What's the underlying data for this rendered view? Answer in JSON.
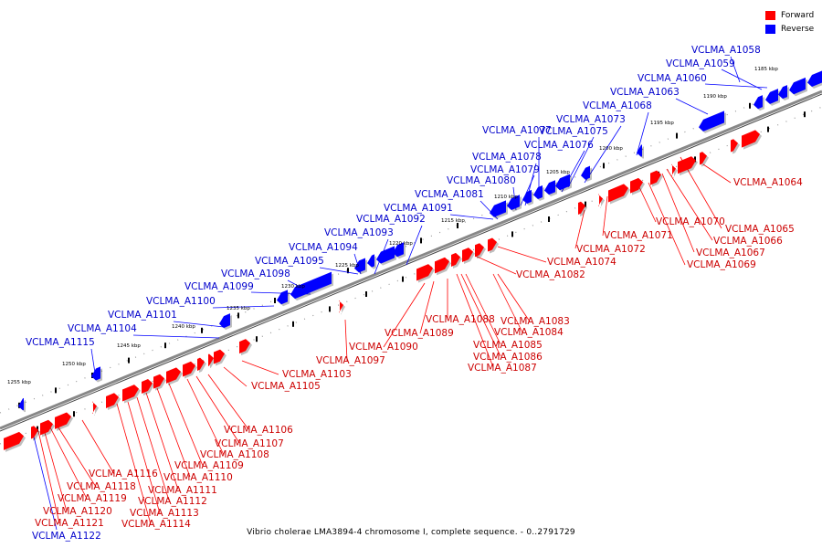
{
  "legend": {
    "forward_label": "Forward",
    "reverse_label": "Reverse",
    "forward_color": "#ff0000",
    "reverse_color": "#0000ff"
  },
  "caption": "Vibrio cholerae LMA3894-4 chromosome I, complete sequence. - 0..2791729",
  "kbp_ticks": [
    "1185 kbp",
    "1190 kbp",
    "1195 kbp",
    "1200 kbp",
    "1205 kbp",
    "1210 kbp",
    "1215 kbp",
    "1220 kbp",
    "1225 kbp",
    "1230 kbp",
    "1235 kbp",
    "1240 kbp",
    "1245 kbp",
    "1250 kbp",
    "1255 kbp"
  ],
  "reverse_labels": [
    "VCLMA_A1058",
    "VCLMA_A1059",
    "VCLMA_A1060",
    "VCLMA_A1063",
    "VCLMA_A1068",
    "VCLMA_A1073",
    "VCLMA_A1075",
    "VCLMA_A1076",
    "VCLMA_A1077",
    "VCLMA_A1078",
    "VCLMA_A1079",
    "VCLMA_A1080",
    "VCLMA_A1081",
    "VCLMA_A1091",
    "VCLMA_A1092",
    "VCLMA_A1093",
    "VCLMA_A1094",
    "VCLMA_A1095",
    "VCLMA_A1098",
    "VCLMA_A1099",
    "VCLMA_A1100",
    "VCLMA_A1101",
    "VCLMA_A1104",
    "VCLMA_A1115",
    "VCLMA_A1122"
  ],
  "forward_labels": [
    "VCLMA_A1064",
    "VCLMA_A1065",
    "VCLMA_A1066",
    "VCLMA_A1067",
    "VCLMA_A1069",
    "VCLMA_A1070",
    "VCLMA_A1071",
    "VCLMA_A1072",
    "VCLMA_A1074",
    "VCLMA_A1082",
    "VCLMA_A1083",
    "VCLMA_A1084",
    "VCLMA_A1085",
    "VCLMA_A1086",
    "VCLMA_A1087",
    "VCLMA_A1088",
    "VCLMA_A1089",
    "VCLMA_A1090",
    "VCLMA_A1097",
    "VCLMA_A1103",
    "VCLMA_A1105",
    "VCLMA_A1106",
    "VCLMA_A1107",
    "VCLMA_A1108",
    "VCLMA_A1109",
    "VCLMA_A1110",
    "VCLMA_A1111",
    "VCLMA_A1112",
    "VCLMA_A1113",
    "VCLMA_A1114",
    "VCLMA_A1116",
    "VCLMA_A1118",
    "VCLMA_A1119",
    "VCLMA_A1120",
    "VCLMA_A1121"
  ]
}
